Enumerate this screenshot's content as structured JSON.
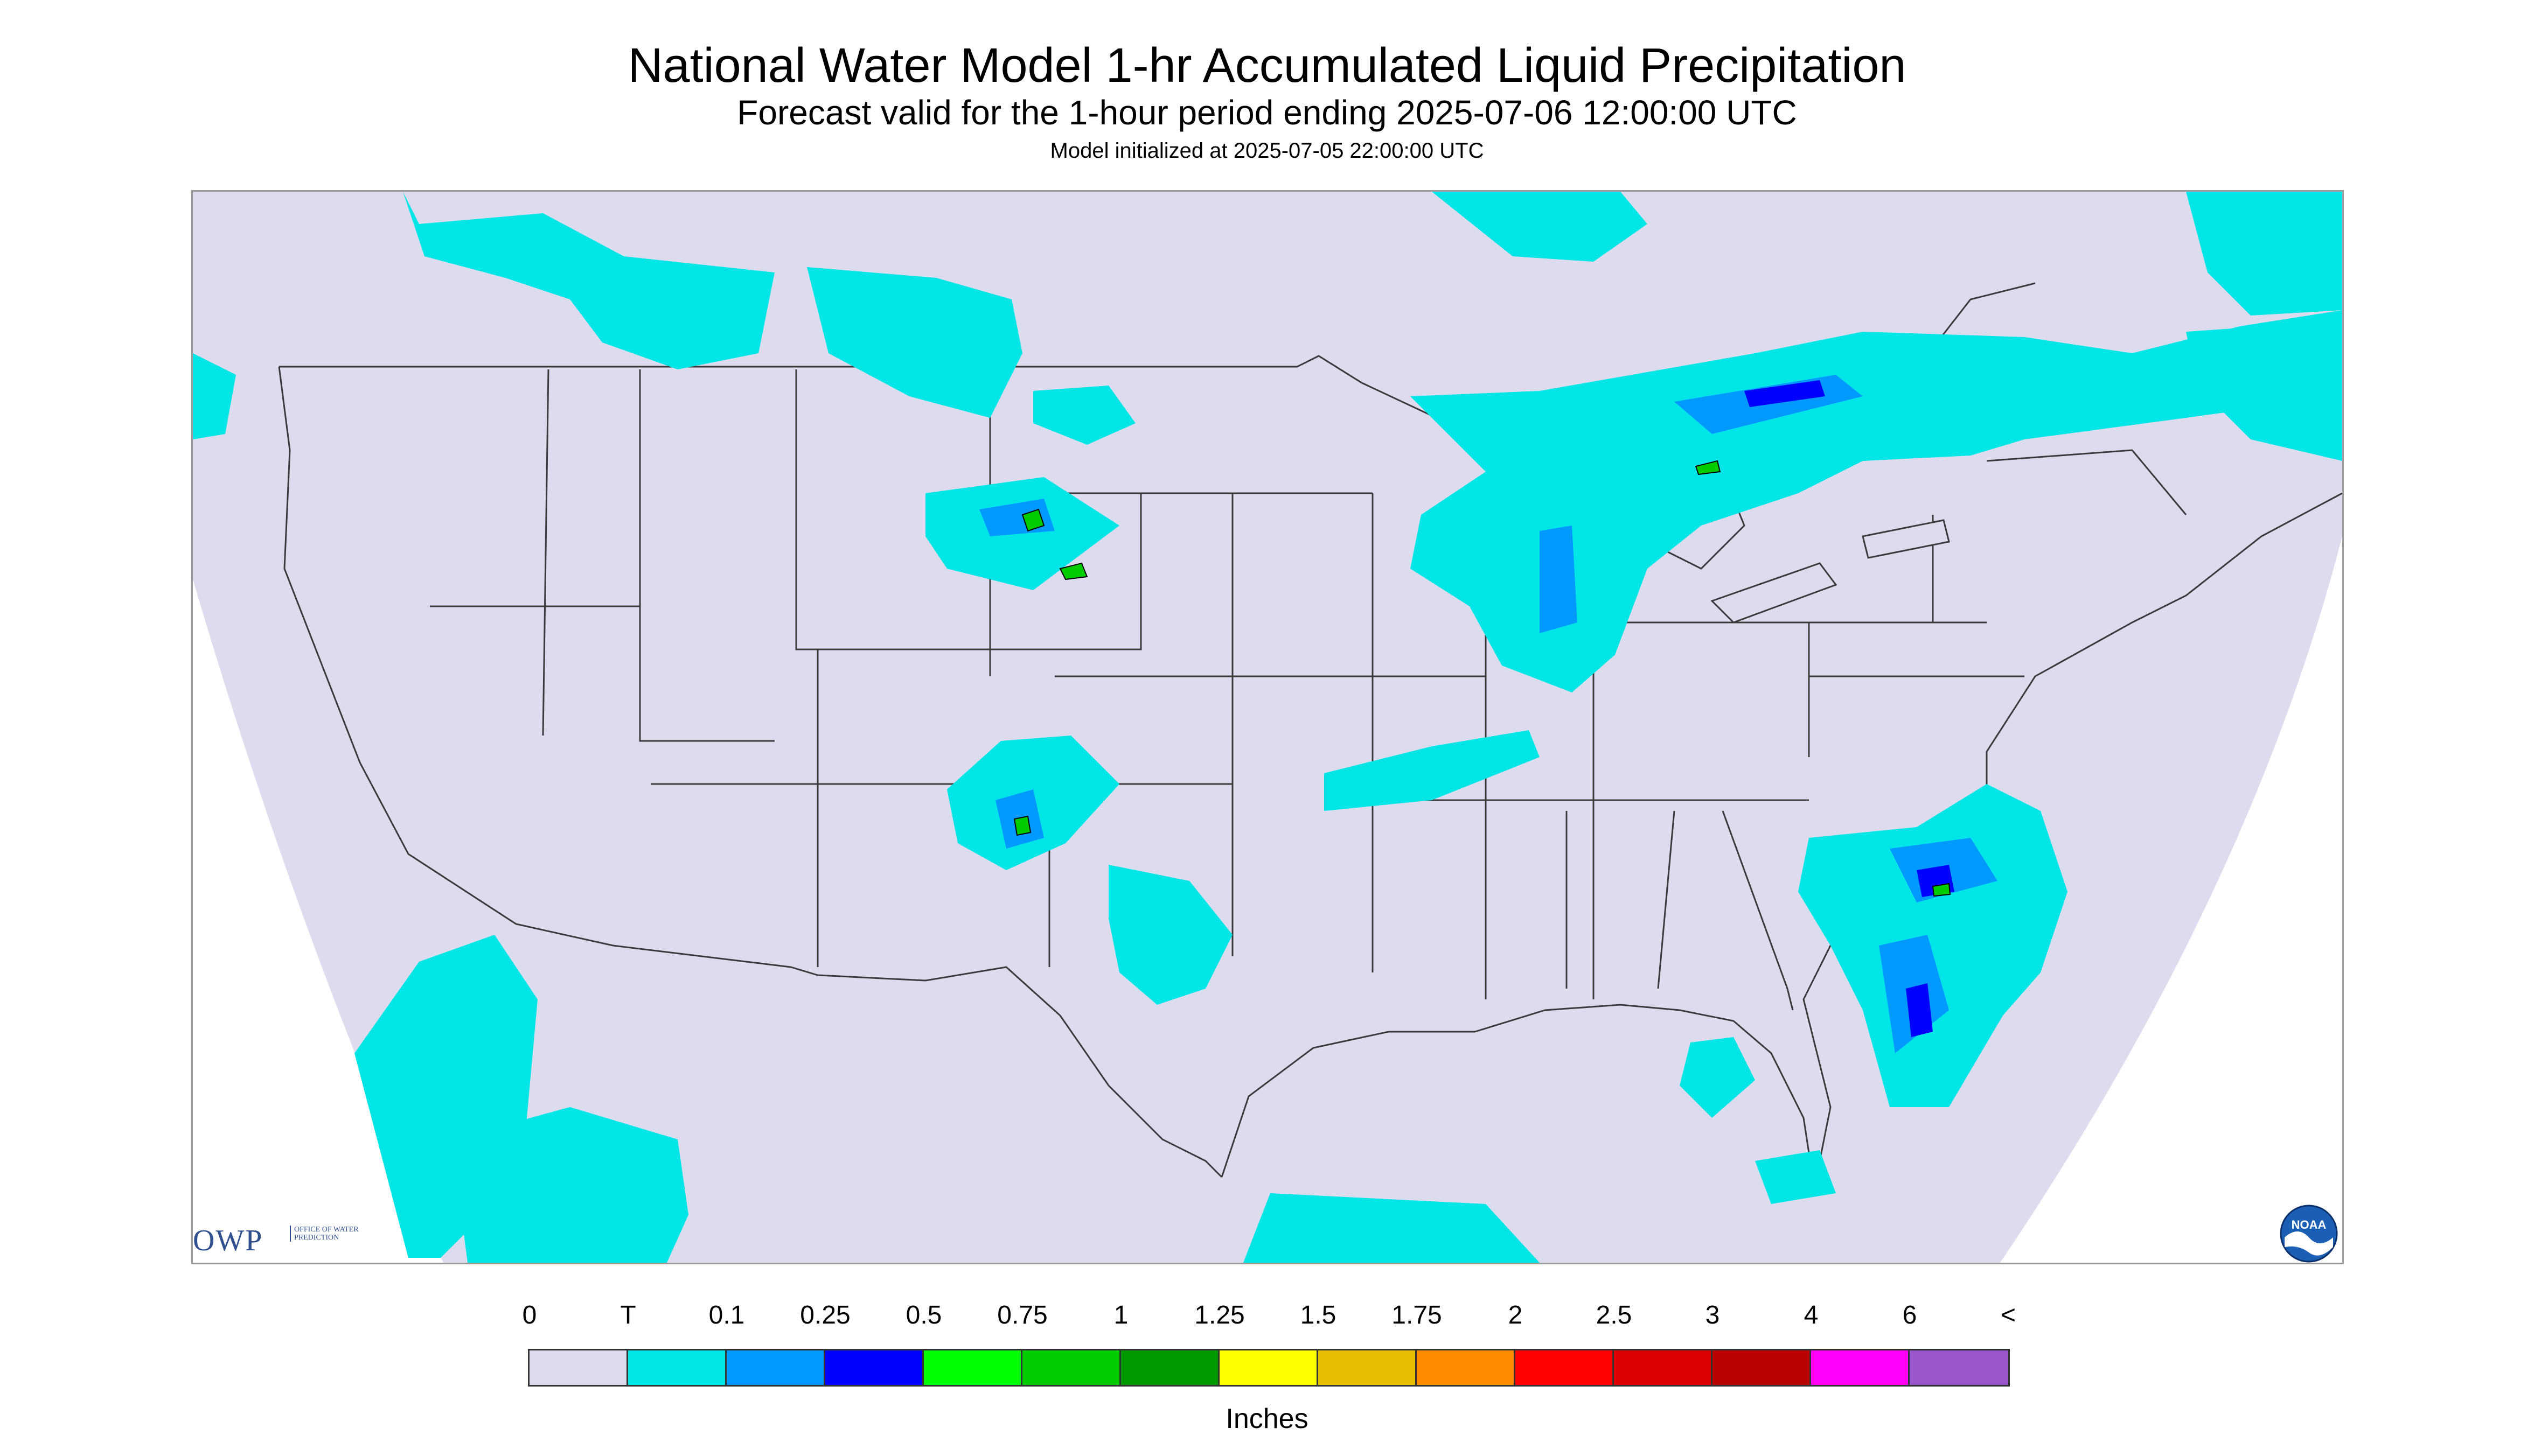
{
  "title": "National Water Model 1-hr Accumulated Liquid Precipitation",
  "subtitle": "Forecast valid for the 1-hour period ending 2025-07-06 12:00:00 UTC",
  "init": "Model initialized at 2025-07-05 22:00:00 UTC",
  "owp": {
    "abbr": "OWP",
    "full": "OFFICE OF WATER PREDICTION"
  },
  "noaa": {
    "label": "NOAA"
  },
  "colors": {
    "map_background": "#dcdcee",
    "boundary_line": "#3a3a3a",
    "light_precip": "#00e6e6",
    "moderate_precip": "#0099ff",
    "heavy_precip": "#0000ff",
    "very_heavy_precip": "#00cc00"
  },
  "legend": {
    "labels": [
      "0",
      "T",
      "0.1",
      "0.25",
      "0.5",
      "0.75",
      "1",
      "1.25",
      "1.5",
      "1.75",
      "2",
      "2.5",
      "3",
      "4",
      "6",
      "<"
    ],
    "colors": [
      "#dcdcee",
      "#00e6e6",
      "#0099ff",
      "#0000ff",
      "#00ff00",
      "#00cc00",
      "#009900",
      "#ffff00",
      "#e6c000",
      "#ff8c00",
      "#ff0000",
      "#dd0000",
      "#bb0000",
      "#ff00ff",
      "#9955cc"
    ],
    "units": "Inches"
  }
}
